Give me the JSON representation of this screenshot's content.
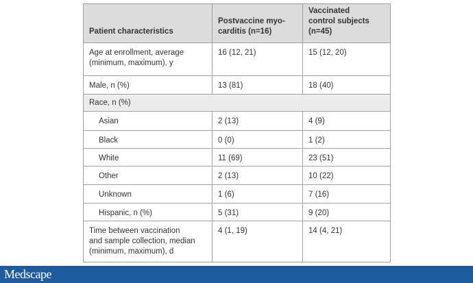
{
  "table": {
    "header": [
      [
        "Patient characteristics"
      ],
      [
        "Postvaccine myo-",
        "carditis (n=16)"
      ],
      [
        "Vaccinated",
        "control subjects",
        "(n=45)"
      ]
    ],
    "rows": [
      {
        "cells": [
          [
            "Age at enrollment, average",
            "(minimum, maximum), y"
          ],
          [
            "16 (12, 21)"
          ],
          [
            "15 (12, 20)"
          ]
        ]
      },
      {
        "cells": [
          [
            "Male, n (%)"
          ],
          [
            "13 (81)"
          ],
          [
            "18 (40)"
          ]
        ]
      },
      {
        "label": "Race, n (%)",
        "items": [
          {
            "cells": [
              [
                "Asian"
              ],
              [
                "2 (13)"
              ],
              [
                "4 (9)"
              ]
            ]
          },
          {
            "cells": [
              [
                "Black"
              ],
              [
                "0 (0)"
              ],
              [
                "1 (2)"
              ]
            ]
          },
          {
            "cells": [
              [
                "White"
              ],
              [
                "11 (69)"
              ],
              [
                "23 (51)"
              ]
            ]
          },
          {
            "cells": [
              [
                "Other"
              ],
              [
                "2 (13)"
              ],
              [
                "10 (22)"
              ]
            ]
          },
          {
            "cells": [
              [
                "Unknown"
              ],
              [
                "1 (6)"
              ],
              [
                "7 (16)"
              ]
            ]
          },
          {
            "cells": [
              [
                "Hispanic, n (%)"
              ],
              [
                "5 (31)"
              ],
              [
                "9 (20)"
              ]
            ]
          }
        ]
      },
      {
        "cells": [
          [
            "Time between vaccination",
            "and sample collection, median",
            "(minimum, maximum), d"
          ],
          [
            "4 (1, 19)"
          ],
          [
            "14 (4, 21)"
          ]
        ]
      }
    ]
  },
  "footer": {
    "brand": "Medscape"
  }
}
